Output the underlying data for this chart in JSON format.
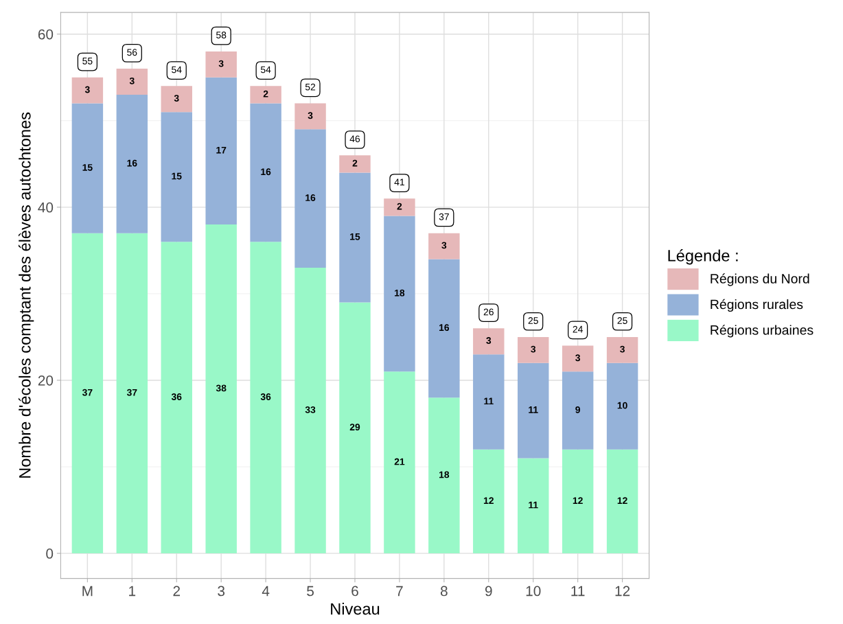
{
  "chart_data": {
    "type": "bar",
    "stacked": true,
    "xlabel": "Niveau",
    "ylabel": "Nombre d'écoles comptant des élèves autochtones",
    "legend_title": "Légende :",
    "categories": [
      "M",
      "1",
      "2",
      "3",
      "4",
      "5",
      "6",
      "7",
      "8",
      "9",
      "10",
      "11",
      "12"
    ],
    "series": [
      {
        "name": "Régions urbaines",
        "color": "#99f8c8",
        "values": [
          37,
          37,
          36,
          38,
          36,
          33,
          29,
          21,
          18,
          12,
          11,
          12,
          12
        ]
      },
      {
        "name": "Régions rurales",
        "color": "#95b2d9",
        "values": [
          15,
          16,
          15,
          17,
          16,
          16,
          15,
          18,
          16,
          11,
          11,
          9,
          10
        ]
      },
      {
        "name": "Régions du Nord",
        "color": "#e6b8b9",
        "values": [
          3,
          3,
          3,
          3,
          2,
          3,
          2,
          2,
          3,
          3,
          3,
          3,
          3
        ]
      }
    ],
    "totals": [
      "55",
      "56",
      "54",
      "58",
      "54",
      "52",
      "46",
      "41",
      "37",
      "26",
      "25",
      "24",
      "25"
    ],
    "data_labels": true,
    "ylim": [
      -2.9,
      62.5
    ],
    "yticks": [
      0,
      20,
      40,
      60
    ],
    "grid": true,
    "legend": "right"
  }
}
